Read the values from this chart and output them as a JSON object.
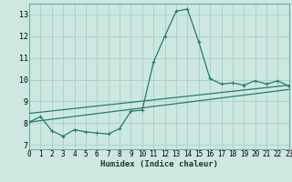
{
  "xlabel": "Humidex (Indice chaleur)",
  "xlim": [
    0,
    23
  ],
  "ylim": [
    6.8,
    13.5
  ],
  "xticks": [
    0,
    1,
    2,
    3,
    4,
    5,
    6,
    7,
    8,
    9,
    10,
    11,
    12,
    13,
    14,
    15,
    16,
    17,
    18,
    19,
    20,
    21,
    22,
    23
  ],
  "yticks": [
    7,
    8,
    9,
    10,
    11,
    12,
    13
  ],
  "bg_color": "#cce8e0",
  "grid_color": "#aacfc8",
  "line_color": "#2a7a6a",
  "curve1_x": [
    0,
    1,
    2,
    3,
    4,
    5,
    6,
    7,
    8,
    9,
    10,
    11,
    12,
    13,
    14,
    15,
    16,
    17,
    18,
    19,
    20,
    21,
    22,
    23
  ],
  "curve1_y": [
    8.05,
    8.3,
    7.65,
    7.4,
    7.7,
    7.6,
    7.55,
    7.5,
    7.75,
    8.55,
    8.6,
    10.8,
    12.0,
    13.15,
    13.25,
    11.75,
    10.05,
    9.8,
    9.85,
    9.75,
    9.95,
    9.8,
    9.95,
    9.7
  ],
  "line2_x": [
    0,
    23
  ],
  "line2_y": [
    8.05,
    9.55
  ],
  "line3_x": [
    0,
    23
  ],
  "line3_y": [
    8.45,
    9.75
  ],
  "tick_fontsize": 5.5,
  "xlabel_fontsize": 6.5,
  "xlabel_fontweight": "bold"
}
